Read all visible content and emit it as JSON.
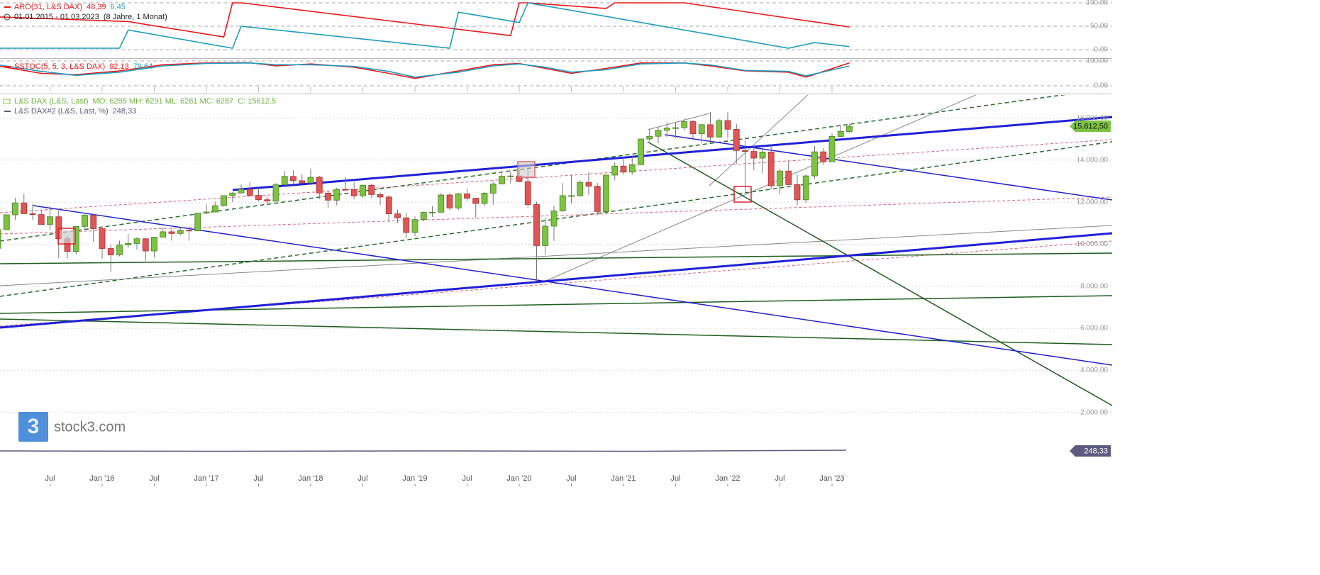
{
  "chart_data": [
    {
      "type": "line",
      "title": "ARO(31, L&S DAX)",
      "period": "01.01.2015 - 01.03.2023",
      "period_length": "(8 Jahre, 1 Monat)",
      "ylim": [
        0,
        100
      ],
      "yticks": [
        {
          "value": 0,
          "label": "0,00"
        },
        {
          "value": 50,
          "label": "50,00"
        },
        {
          "value": 100,
          "label": "100,00"
        }
      ],
      "grid": true,
      "series": [
        {
          "color": "#e8191c",
          "last_label": "48,39",
          "x": [
            "2015-01",
            "2016-04",
            "2017-03",
            "2017-04",
            "2017-05",
            "2019-12",
            "2020-01",
            "2020-02",
            "2020-11",
            "2020-12",
            "2021-08",
            "2023-03"
          ],
          "values": [
            70,
            60,
            27,
            100,
            100,
            30,
            100,
            100,
            88,
            100,
            100,
            48.39
          ]
        },
        {
          "color": "#1f9cbf",
          "last_label": "6,45",
          "x": [
            "2015-01",
            "2016-03",
            "2016-04",
            "2017-04",
            "2017-05",
            "2019-05",
            "2019-06",
            "2020-01",
            "2020-02",
            "2022-08",
            "2022-11",
            "2023-03"
          ],
          "values": [
            3,
            3,
            42,
            3,
            50,
            3,
            80,
            58,
            100,
            3,
            15,
            6.45
          ]
        }
      ]
    },
    {
      "type": "line",
      "title": "SSTOC(5, 5, 3, L&S DAX)",
      "ylim": [
        0,
        100
      ],
      "yticks": [
        {
          "value": 0,
          "label": "0,00"
        },
        {
          "value": 100,
          "label": "100,00"
        }
      ],
      "grid": true,
      "series": [
        {
          "color": "#e8191c",
          "last_label": "92,13",
          "x": [
            "2015-01",
            "2015-06",
            "2015-10",
            "2016-03",
            "2016-08",
            "2017-01",
            "2017-06",
            "2017-09",
            "2018-01",
            "2018-06",
            "2018-10",
            "2019-01",
            "2019-06",
            "2019-10",
            "2020-01",
            "2020-04",
            "2020-07",
            "2020-11",
            "2021-03",
            "2021-08",
            "2021-11",
            "2022-03",
            "2022-08",
            "2022-10",
            "2023-03"
          ],
          "values": [
            80,
            50,
            45,
            60,
            85,
            92,
            93,
            80,
            88,
            75,
            50,
            30,
            60,
            85,
            90,
            70,
            50,
            70,
            92,
            92,
            80,
            60,
            55,
            35,
            92.13
          ]
        },
        {
          "color": "#1f9cbf",
          "last_label": "79,64",
          "x": [
            "2015-01",
            "2015-06",
            "2015-10",
            "2016-03",
            "2016-08",
            "2017-01",
            "2017-06",
            "2017-09",
            "2018-01",
            "2018-06",
            "2018-10",
            "2019-01",
            "2019-06",
            "2019-10",
            "2020-01",
            "2020-04",
            "2020-07",
            "2020-11",
            "2021-03",
            "2021-08",
            "2021-11",
            "2022-03",
            "2022-08",
            "2022-10",
            "2023-03"
          ],
          "values": [
            85,
            58,
            42,
            55,
            80,
            90,
            92,
            85,
            85,
            78,
            58,
            35,
            55,
            80,
            88,
            75,
            55,
            65,
            88,
            92,
            84,
            62,
            58,
            40,
            79.64
          ]
        }
      ]
    },
    {
      "type": "candlestick",
      "title": "L&S DAX (L&S, Last)",
      "ohlc_label": "MO: 6285 MH: 6291 ML: 6281 MC: 6287",
      "close_label": "C: 15612.5",
      "last_value_label": "15.612,50",
      "up_color": "#7dc242",
      "down_color": "#e05656",
      "series2": {
        "name": "L&S DAX#2 (L&S, Last, %)",
        "last_label": "248,33",
        "color": "#5d5a80"
      },
      "ylim": [
        0,
        17100
      ],
      "yticks": [
        {
          "value": 2000,
          "label": "2.000,00"
        },
        {
          "value": 4000,
          "label": "4.000,00"
        },
        {
          "value": 6000,
          "label": "6.000,00"
        },
        {
          "value": 8000,
          "label": "8.000,00"
        },
        {
          "value": 10000,
          "label": "10.000,00"
        },
        {
          "value": 12000,
          "label": "12.000,00"
        },
        {
          "value": 14000,
          "label": "14.000,00"
        },
        {
          "value": 16000,
          "label": "16.000,00"
        }
      ],
      "grid": true,
      "xticks": [
        {
          "value": "2015-07",
          "label": "Jul"
        },
        {
          "value": "2016-01",
          "label": "Jan '16"
        },
        {
          "value": "2016-07",
          "label": "Jul"
        },
        {
          "value": "2017-01",
          "label": "Jan '17"
        },
        {
          "value": "2017-07",
          "label": "Jul"
        },
        {
          "value": "2018-01",
          "label": "Jan '18"
        },
        {
          "value": "2018-07",
          "label": "Jul"
        },
        {
          "value": "2019-01",
          "label": "Jan '19"
        },
        {
          "value": "2019-07",
          "label": "Jul"
        },
        {
          "value": "2020-01",
          "label": "Jan '20"
        },
        {
          "value": "2020-07",
          "label": "Jul"
        },
        {
          "value": "2021-01",
          "label": "Jan '21"
        },
        {
          "value": "2021-07",
          "label": "Jul"
        },
        {
          "value": "2022-01",
          "label": "Jan '22"
        },
        {
          "value": "2022-07",
          "label": "Jul"
        },
        {
          "value": "2023-01",
          "label": "Jan '23"
        }
      ],
      "categories": [
        "2015-01",
        "2015-02",
        "2015-03",
        "2015-04",
        "2015-05",
        "2015-06",
        "2015-07",
        "2015-08",
        "2015-09",
        "2015-10",
        "2015-11",
        "2015-12",
        "2016-01",
        "2016-02",
        "2016-03",
        "2016-04",
        "2016-05",
        "2016-06",
        "2016-07",
        "2016-08",
        "2016-09",
        "2016-10",
        "2016-11",
        "2016-12",
        "2017-01",
        "2017-02",
        "2017-03",
        "2017-04",
        "2017-05",
        "2017-06",
        "2017-07",
        "2017-08",
        "2017-09",
        "2017-10",
        "2017-11",
        "2017-12",
        "2018-01",
        "2018-02",
        "2018-03",
        "2018-04",
        "2018-05",
        "2018-06",
        "2018-07",
        "2018-08",
        "2018-09",
        "2018-10",
        "2018-11",
        "2018-12",
        "2019-01",
        "2019-02",
        "2019-03",
        "2019-04",
        "2019-05",
        "2019-06",
        "2019-07",
        "2019-08",
        "2019-09",
        "2019-10",
        "2019-11",
        "2019-12",
        "2020-01",
        "2020-02",
        "2020-03",
        "2020-04",
        "2020-05",
        "2020-06",
        "2020-07",
        "2020-08",
        "2020-09",
        "2020-10",
        "2020-11",
        "2020-12",
        "2021-01",
        "2021-02",
        "2021-03",
        "2021-04",
        "2021-05",
        "2021-06",
        "2021-07",
        "2021-08",
        "2021-09",
        "2021-10",
        "2021-11",
        "2021-12",
        "2022-01",
        "2022-02",
        "2022-03",
        "2022-04",
        "2022-05",
        "2022-06",
        "2022-07",
        "2022-08",
        "2022-09",
        "2022-10",
        "2022-11",
        "2022-12",
        "2023-01",
        "2023-02",
        "2023-03"
      ],
      "open": [
        9806,
        10694,
        11401,
        11966,
        11454,
        11413,
        10945,
        11308,
        10259,
        9660,
        10850,
        11382,
        10743,
        9798,
        9495,
        9965,
        10038,
        10262,
        9680,
        10337,
        10592,
        10511,
        10665,
        10640,
        11481,
        11535,
        11834,
        12312,
        12438,
        12615,
        12325,
        12118,
        12055,
        12829,
        13229,
        13023,
        12918,
        13189,
        12436,
        12097,
        12612,
        12605,
        12306,
        12806,
        12364,
        12247,
        11447,
        11257,
        10559,
        11173,
        11516,
        11526,
        12344,
        11727,
        12399,
        12189,
        11939,
        12428,
        12867,
        13236,
        13249,
        12981,
        11890,
        9936,
        10862,
        11587,
        12311,
        12313,
        12945,
        12761,
        11556,
        13291,
        13719,
        13433,
        13786,
        15008,
        15136,
        15421,
        15531,
        15544,
        15835,
        15260,
        15688,
        15100,
        15885,
        15471,
        14461,
        14415,
        14098,
        14388,
        12784,
        13484,
        12835,
        12114,
        13253,
        14397,
        13924,
        15128,
        15365
      ],
      "high": [
        10810,
        11402,
        12219,
        12391,
        11920,
        11636,
        11802,
        11670,
        10386,
        10850,
        11430,
        11449,
        10744,
        9996,
        10170,
        10474,
        10333,
        10305,
        10337,
        10802,
        10752,
        10826,
        10800,
        11482,
        11893,
        12031,
        12313,
        12487,
        12845,
        12951,
        12676,
        12272,
        12908,
        13479,
        13526,
        13338,
        13597,
        13254,
        12567,
        12687,
        13204,
        12955,
        12843,
        12887,
        12467,
        12335,
        11647,
        11500,
        11323,
        11557,
        11823,
        12436,
        12435,
        12440,
        12657,
        12190,
        12494,
        12964,
        13374,
        13425,
        13640,
        13795,
        12028,
        11234,
        11836,
        12913,
        13314,
        13043,
        13460,
        12911,
        13296,
        13903,
        14131,
        14197,
        15030,
        15502,
        15568,
        15803,
        15810,
        15977,
        15912,
        15723,
        16290,
        15979,
        16285,
        15736,
        14925,
        14686,
        14575,
        14712,
        13575,
        13948,
        13316,
        13339,
        14675,
        14574,
        15269,
        15658,
        15705
      ],
      "low": [
        9382,
        10694,
        11163,
        11450,
        11169,
        10943,
        10676,
        9338,
        9325,
        9509,
        10751,
        10123,
        9314,
        8699,
        9427,
        9826,
        9737,
        9214,
        9371,
        10332,
        10175,
        10421,
        10174,
        10620,
        11424,
        11519,
        11800,
        12000,
        12432,
        12300,
        12040,
        11868,
        12013,
        12800,
        12842,
        12910,
        12900,
        12144,
        11726,
        11850,
        12542,
        12138,
        12213,
        12199,
        11866,
        11051,
        11010,
        10279,
        10386,
        11090,
        11298,
        11500,
        11621,
        11620,
        12047,
        11266,
        11800,
        11878,
        12850,
        12887,
        12948,
        11724,
        8256,
        9486,
        10162,
        11548,
        11946,
        12253,
        12342,
        11451,
        11553,
        13057,
        13310,
        13311,
        13779,
        14901,
        14816,
        15079,
        15047,
        15413,
        14983,
        14819,
        14814,
        15059,
        15057,
        13807,
        12438,
        13528,
        13368,
        12619,
        12391,
        12802,
        11863,
        11976,
        13104,
        13791,
        13923,
        15097,
        15300
      ],
      "close": [
        10694,
        11401,
        11966,
        11454,
        11413,
        10945,
        11308,
        10259,
        9660,
        10850,
        11382,
        10743,
        9798,
        9495,
        9965,
        10038,
        10262,
        9680,
        10337,
        10592,
        10511,
        10665,
        10640,
        11481,
        11535,
        11834,
        12312,
        12438,
        12615,
        12325,
        12118,
        12055,
        12829,
        13229,
        13023,
        12918,
        13189,
        12436,
        12097,
        12612,
        12605,
        12306,
        12806,
        12364,
        12247,
        11447,
        11257,
        10559,
        11173,
        11516,
        11526,
        12344,
        11727,
        12399,
        12189,
        11939,
        12428,
        12867,
        13236,
        13249,
        12981,
        11890,
        9936,
        10862,
        11587,
        12311,
        12313,
        12945,
        12761,
        11556,
        13291,
        13719,
        13433,
        13786,
        15008,
        15136,
        15421,
        15531,
        15544,
        15835,
        15260,
        15688,
        15100,
        15885,
        15471,
        14461,
        14415,
        14098,
        14388,
        12784,
        13484,
        12835,
        12114,
        13253,
        14397,
        13924,
        15128,
        15365,
        15612.5
      ]
    }
  ],
  "logo": {
    "mark": "3",
    "text": "stock3.com"
  }
}
